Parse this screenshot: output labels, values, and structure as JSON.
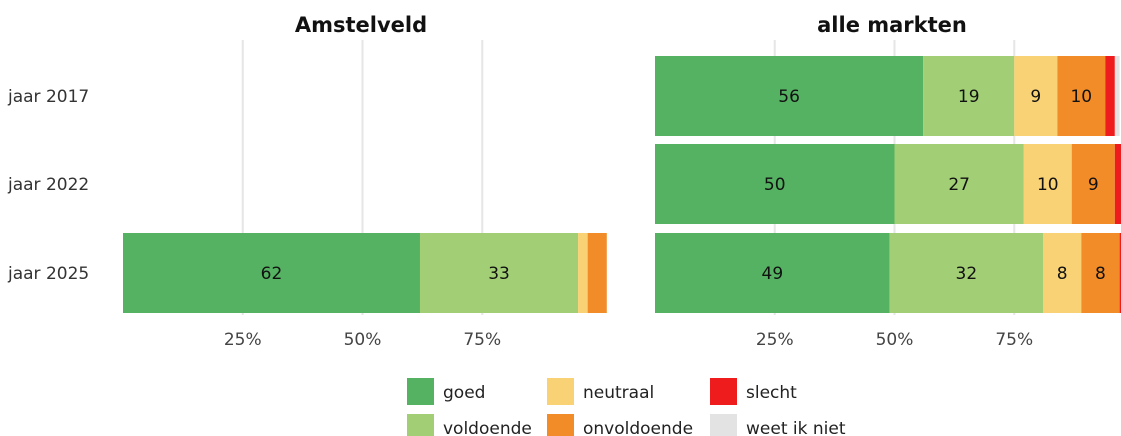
{
  "chart_data": {
    "type": "bar",
    "orientation": "horizontal",
    "stacked": true,
    "grid": true,
    "legend_position": "bottom",
    "xlim": [
      0,
      100
    ],
    "x_ticks": [
      25,
      50,
      75
    ],
    "x_tick_labels": [
      "25%",
      "50%",
      "75%"
    ],
    "categories": [
      "jaar 2017",
      "jaar 2022",
      "jaar 2025"
    ],
    "series": [
      {
        "name": "goed",
        "color": "#55b262"
      },
      {
        "name": "voldoende",
        "color": "#a2cf75"
      },
      {
        "name": "neutraal",
        "color": "#f8d275"
      },
      {
        "name": "onvoldoende",
        "color": "#f28c28"
      },
      {
        "name": "slecht",
        "color": "#ee1c1c"
      },
      {
        "name": "weet ik niet",
        "color": "#e3e3e3"
      }
    ],
    "panels": [
      {
        "title": "Amstelveld",
        "values": [
          null,
          null,
          [
            62,
            33,
            2,
            4,
            0,
            0
          ]
        ]
      },
      {
        "title": "alle markten",
        "values": [
          [
            56,
            19,
            9,
            10,
            2,
            1
          ],
          [
            50,
            27,
            10,
            9,
            2,
            0
          ],
          [
            49,
            32,
            8,
            8,
            1,
            0
          ]
        ]
      }
    ]
  }
}
